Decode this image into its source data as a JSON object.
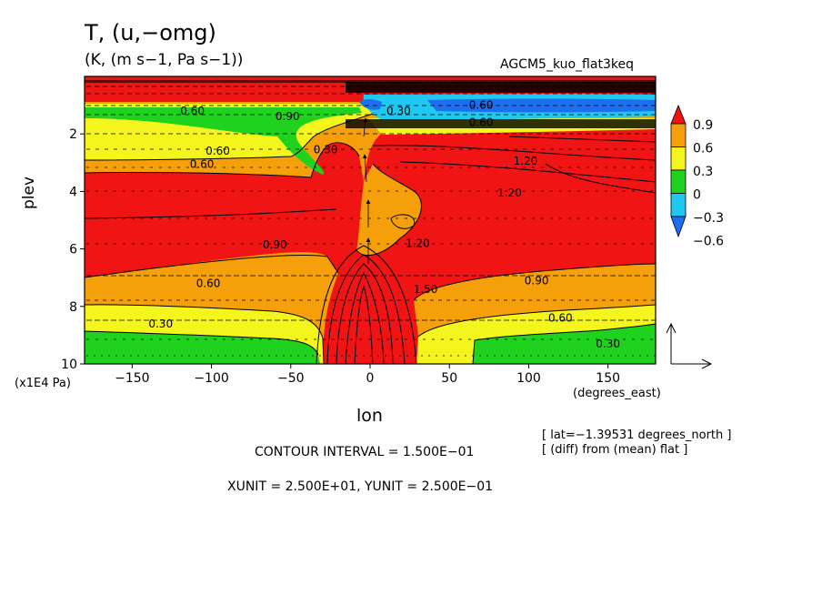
{
  "chart_data": {
    "type": "heatmap",
    "title": "T, (u,−omg)",
    "units_line": "(K, (m s−1, Pa s−1))",
    "run_label": "AGCM5_kuo_flat3keq",
    "ylabel": "plev",
    "yunit": "(x1E4 Pa)",
    "xlabel": "lon",
    "xunit": "(degrees_east)",
    "xlim": [
      -180,
      180
    ],
    "ylim": [
      10,
      0
    ],
    "x_ticks": [
      -150,
      -100,
      -50,
      0,
      50,
      100,
      150
    ],
    "y_ticks": [
      2,
      4,
      6,
      8,
      10
    ],
    "colorbar": {
      "labels": [
        "0.9",
        "0.6",
        "0.3",
        "0",
        "−0.3",
        "−0.6"
      ],
      "levels": [
        -0.6,
        -0.3,
        0,
        0.3,
        0.6,
        0.9
      ],
      "colors": [
        "#1e6ef0",
        "#1fc8f0",
        "#1ed21e",
        "#f5f51e",
        "#f5a00a",
        "#f01414"
      ]
    },
    "contour_labels": [
      {
        "text": "0.60",
        "x": -112,
        "y": 1.2
      },
      {
        "text": "0.90",
        "x": -52,
        "y": 1.4
      },
      {
        "text": "0.60",
        "x": -96,
        "y": 2.6
      },
      {
        "text": "0.30",
        "x": -28,
        "y": 2.55
      },
      {
        "text": "0.60",
        "x": -106,
        "y": 3.05
      },
      {
        "text": "0.30",
        "x": 18,
        "y": 1.2
      },
      {
        "text": "0.60",
        "x": 70,
        "y": 1.0
      },
      {
        "text": "0.60",
        "x": 70,
        "y": 1.6
      },
      {
        "text": "1.20",
        "x": 98,
        "y": 2.95
      },
      {
        "text": "1.20",
        "x": 88,
        "y": 4.05
      },
      {
        "text": "0.90",
        "x": -60,
        "y": 5.85
      },
      {
        "text": "1.20",
        "x": 30,
        "y": 5.8
      },
      {
        "text": "1.50",
        "x": 35,
        "y": 7.4
      },
      {
        "text": "0.60",
        "x": -102,
        "y": 7.2
      },
      {
        "text": "0.90",
        "x": 105,
        "y": 7.1
      },
      {
        "text": "0.30",
        "x": -132,
        "y": 8.6
      },
      {
        "text": "0.60",
        "x": 120,
        "y": 8.4
      },
      {
        "text": "0.30",
        "x": 150,
        "y": 9.3
      }
    ]
  },
  "info": {
    "lat": "[ lat=−1.39531 degrees_north ]",
    "diff": "[ (diff) from (mean) flat ]",
    "contour_interval": "CONTOUR INTERVAL = 1.500E−01",
    "vector_units": "XUNIT = 2.500E+01, YUNIT = 2.500E−01"
  }
}
